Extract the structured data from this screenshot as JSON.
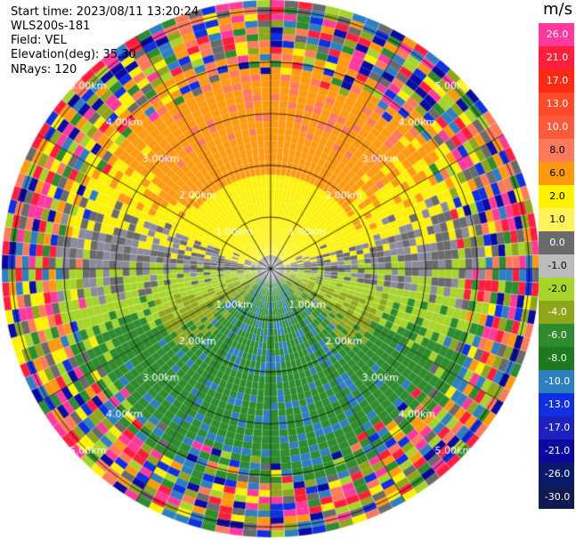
{
  "header": {
    "start_time": "Start time: 2023/08/11 13:20:24",
    "instrument": "WLS200s-181",
    "field": "Field: VEL",
    "elevation": "Elevation(deg): 35.30",
    "nrays": "NRays: 120"
  },
  "colorbar": {
    "unit": "m/s",
    "labels": [
      "26.0",
      "21.0",
      "17.0",
      "13.0",
      "10.0",
      "8.0",
      "6.0",
      "2.0",
      "1.0",
      "0.0",
      "-1.0",
      "-2.0",
      "-4.0",
      "-6.0",
      "-8.0",
      "-10.0",
      "-13.0",
      "-17.0",
      "-21.0",
      "-26.0",
      "-30.0"
    ],
    "colors": [
      "#ff3a9c",
      "#ff1f3c",
      "#ff2a14",
      "#ff4a2a",
      "#ff5a3a",
      "#ff7a5a",
      "#ff9a10",
      "#fff200",
      "#fff35a",
      "#6a6a6a",
      "#bcbcbc",
      "#a7d42a",
      "#8fa61c",
      "#2e8b2e",
      "#1c7a1c",
      "#2f7fc0",
      "#0f2fe0",
      "#2020c0",
      "#0a0aa0",
      "#0a1a6a",
      "#0f1a50"
    ]
  },
  "chart_data": {
    "type": "heatmap",
    "projection": "polar PPI",
    "field": "VEL",
    "units": "m/s",
    "nrays": 120,
    "range_rings_km": [
      1,
      2,
      3,
      4,
      5
    ],
    "range_ring_labels": [
      "1.00km",
      "2.00km",
      "3.00km",
      "4.00km",
      "5.00km"
    ],
    "radial_lines_deg": [
      0,
      30,
      60,
      90,
      120,
      150,
      180,
      210,
      240,
      270,
      300,
      330
    ],
    "velocity_pattern_by_region": [
      {
        "region": "north",
        "value_ms": 6.0
      },
      {
        "region": "north-inner",
        "value_ms": 2.0
      },
      {
        "region": "east-west",
        "value_ms": 0.0
      },
      {
        "region": "south-inner",
        "value_ms": -2.0
      },
      {
        "region": "south",
        "value_ms": -6.0
      },
      {
        "region": "outer ring",
        "value_ms": "noise"
      }
    ]
  }
}
